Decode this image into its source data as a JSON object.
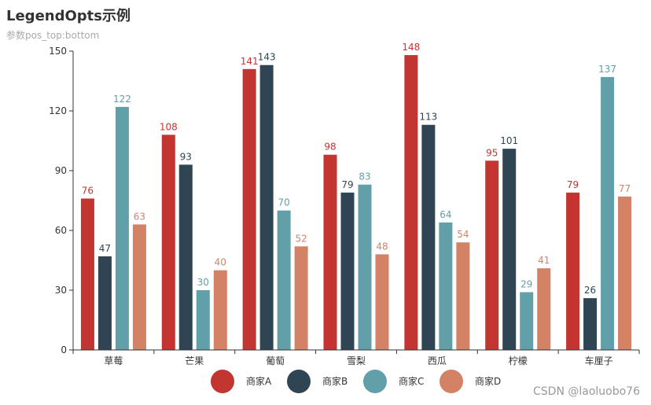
{
  "chart_data": {
    "type": "bar",
    "title": "LegendOpts示例",
    "subtitle": "参数pos_top:bottom",
    "categories": [
      "草莓",
      "芒果",
      "葡萄",
      "雪梨",
      "西瓜",
      "柠檬",
      "车厘子"
    ],
    "series": [
      {
        "name": "商家A",
        "color": "#c23531",
        "values": [
          76,
          108,
          141,
          98,
          148,
          95,
          79
        ]
      },
      {
        "name": "商家B",
        "color": "#2f4554",
        "values": [
          47,
          93,
          143,
          79,
          113,
          101,
          26
        ]
      },
      {
        "name": "商家C",
        "color": "#61a0a8",
        "values": [
          122,
          30,
          70,
          83,
          64,
          29,
          137
        ]
      },
      {
        "name": "商家D",
        "color": "#d48265",
        "values": [
          63,
          40,
          52,
          48,
          54,
          41,
          77
        ]
      }
    ],
    "ylim": [
      0,
      150
    ],
    "yticks": [
      0,
      30,
      60,
      90,
      120,
      150
    ],
    "xlabel": "",
    "ylabel": "",
    "legend_position": "bottom",
    "show_data_labels": true
  },
  "watermark": "CSDN @laoluobo76"
}
